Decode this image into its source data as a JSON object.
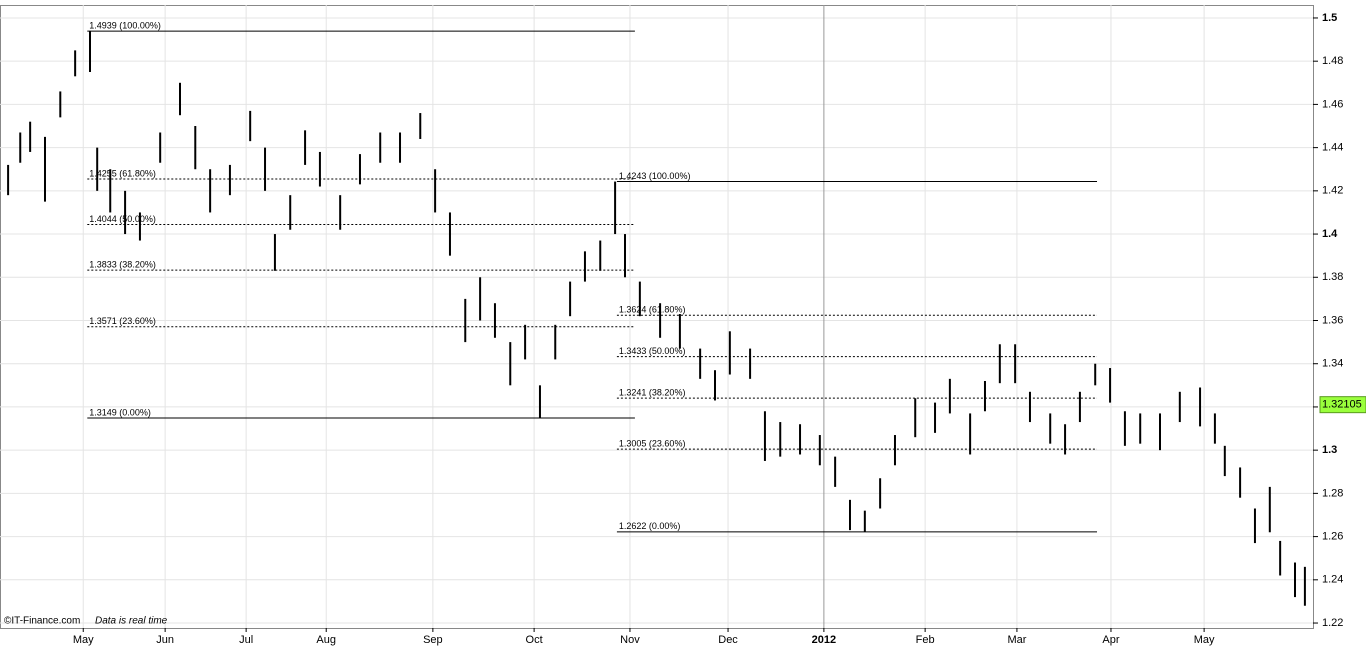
{
  "chart_data": {
    "type": "ohlc",
    "x": [
      0,
      2.7,
      4.9,
      8.2,
      11.6,
      14.9,
      18.2,
      19.8,
      22.7,
      26,
      29.3,
      33.8,
      38.2,
      41.6,
      44.9,
      49.3,
      53.8,
      57.1,
      59.3,
      62.7,
      66,
      69.3,
      73.8,
      78.2,
      82.7,
      87.1,
      91.6,
      94.9,
      98.2,
      101.6,
      104.9,
      108.2,
      111.6,
      114.9,
      118.2,
      121.6,
      124.9,
      128.2,
      131.6,
      134.9,
      137.1,
      140.4,
      144.9,
      149.3,
      153.8,
      157.1,
      160.4,
      164.9,
      168.2,
      171.6,
      176,
      180.4,
      183.8,
      187.1,
      190.4,
      193.8,
      197.1,
      201.6,
      206,
      209.3,
      213.8,
      217.1,
      220.4,
      223.8,
      227.1,
      231.6,
      234.9,
      238.2,
      241.6,
      244.9,
      248.2,
      251.6,
      256,
      260.4,
      264.9,
      268.2,
      270.4,
      273.8,
      277.1,
      280.4,
      282.7,
      286,
      288.2
    ],
    "high": [
      1.432,
      1.447,
      1.452,
      1.445,
      1.466,
      1.485,
      1.4939,
      1.44,
      1.43,
      1.42,
      1.41,
      1.447,
      1.47,
      1.45,
      1.43,
      1.432,
      1.457,
      1.44,
      1.4,
      1.418,
      1.448,
      1.438,
      1.418,
      1.437,
      1.447,
      1.447,
      1.456,
      1.43,
      1.41,
      1.37,
      1.38,
      1.368,
      1.35,
      1.358,
      1.33,
      1.358,
      1.378,
      1.392,
      1.397,
      1.4243,
      1.4,
      1.378,
      1.368,
      1.363,
      1.347,
      1.337,
      1.355,
      1.347,
      1.318,
      1.313,
      1.312,
      1.307,
      1.297,
      1.277,
      1.272,
      1.287,
      1.307,
      1.324,
      1.322,
      1.333,
      1.317,
      1.332,
      1.349,
      1.349,
      1.327,
      1.317,
      1.312,
      1.327,
      1.34,
      1.338,
      1.318,
      1.317,
      1.317,
      1.327,
      1.329,
      1.317,
      1.302,
      1.292,
      1.273,
      1.283,
      1.258,
      1.248,
      1.246
    ],
    "low": [
      1.418,
      1.433,
      1.438,
      1.415,
      1.454,
      1.473,
      1.475,
      1.42,
      1.41,
      1.4,
      1.397,
      1.433,
      1.455,
      1.43,
      1.41,
      1.418,
      1.443,
      1.42,
      1.383,
      1.402,
      1.432,
      1.422,
      1.402,
      1.423,
      1.433,
      1.433,
      1.444,
      1.41,
      1.39,
      1.35,
      1.36,
      1.352,
      1.33,
      1.342,
      1.3149,
      1.342,
      1.362,
      1.378,
      1.383,
      1.4,
      1.38,
      1.362,
      1.352,
      1.347,
      1.333,
      1.323,
      1.335,
      1.333,
      1.295,
      1.297,
      1.298,
      1.293,
      1.283,
      1.263,
      1.2622,
      1.273,
      1.293,
      1.306,
      1.308,
      1.317,
      1.298,
      1.318,
      1.331,
      1.331,
      1.313,
      1.303,
      1.298,
      1.313,
      1.33,
      1.322,
      1.302,
      1.303,
      1.3,
      1.313,
      1.311,
      1.303,
      1.288,
      1.278,
      1.257,
      1.262,
      1.242,
      1.232,
      1.228
    ],
    "color": "#000000",
    "xlim": [
      -1.8,
      290
    ],
    "xticks": [
      {
        "value": 16.7,
        "label": "May"
      },
      {
        "value": 34.9,
        "label": "Jun"
      },
      {
        "value": 52.9,
        "label": "Jul"
      },
      {
        "value": 70.7,
        "label": "Aug"
      },
      {
        "value": 94.4,
        "label": "Sep"
      },
      {
        "value": 116.9,
        "label": "Oct"
      },
      {
        "value": 138.2,
        "label": "Nov"
      },
      {
        "value": 160,
        "label": "Dec"
      },
      {
        "value": 181.3,
        "label": "2012"
      },
      {
        "value": 203.8,
        "label": "Feb"
      },
      {
        "value": 224.2,
        "label": "Mar"
      },
      {
        "value": 245.1,
        "label": "Apr"
      },
      {
        "value": 265.8,
        "label": "May"
      }
    ],
    "ylim": [
      1.2177,
      1.506
    ],
    "yticks": [
      1.22,
      1.24,
      1.26,
      1.28,
      1.3,
      1.32,
      1.34,
      1.36,
      1.38,
      1.4,
      1.42,
      1.44,
      1.46,
      1.48,
      1.5
    ],
    "grid": true,
    "last_price": 1.32105,
    "fib_levels": [
      {
        "x_start": 17.6,
        "x_end": 139.3,
        "levels": [
          {
            "value": 1.4939,
            "label": "1.4939 (100.00%)"
          },
          {
            "value": 1.4255,
            "label": "1.4255 (61.80%)"
          },
          {
            "value": 1.4044,
            "label": "1.4044 (50.00%)"
          },
          {
            "value": 1.3833,
            "label": "1.3833 (38.20%)"
          },
          {
            "value": 1.3571,
            "label": "1.3571 (23.60%)"
          },
          {
            "value": 1.3149,
            "label": "1.3149 (0.00%)"
          }
        ]
      },
      {
        "x_start": 135.3,
        "x_end": 242,
        "levels": [
          {
            "value": 1.4243,
            "label": "1.4243 (100.00%)"
          },
          {
            "value": 1.3624,
            "label": "1.3624 (61.80%)"
          },
          {
            "value": 1.3433,
            "label": "1.3433 (50.00%)"
          },
          {
            "value": 1.3241,
            "label": "1.3241 (38.20%)"
          },
          {
            "value": 1.3005,
            "label": "1.3005 (23.60%)"
          },
          {
            "value": 1.2622,
            "label": "1.2622 (0.00%)"
          }
        ]
      }
    ],
    "source": "©IT-Finance.com",
    "note": "Data is real time"
  }
}
